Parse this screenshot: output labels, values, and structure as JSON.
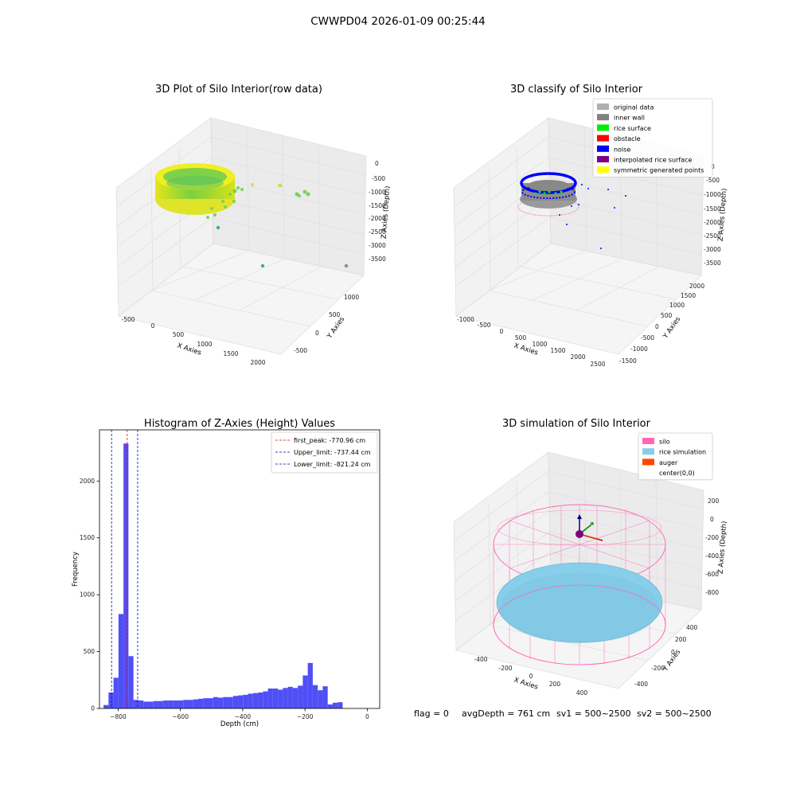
{
  "suptitle": "CWWPD04 2026-01-09 00:25:44",
  "status": {
    "flag": "flag = 0",
    "avg_depth": "avgDepth = 761 cm",
    "sv1": "sv1 = 500~2500",
    "sv2": "sv2 = 500~2500"
  },
  "colors": {
    "hist_bar": "#4f4ff7",
    "silo": "#ff69b4",
    "rice": "#87ceeb",
    "auger": "#ff4500",
    "original": "#b0b0b0",
    "inner_wall": "#808080",
    "rice_surface": "#00ee00",
    "obstacle": "#ff0000",
    "noise": "#0000ff",
    "interpolated": "#800080",
    "symmetric": "#ffff00"
  },
  "chart_data": [
    {
      "type": "scatter",
      "panel": "raw",
      "title": "3D Plot of Silo Interior(row data)",
      "xlabel": "X Axies",
      "ylabel": "Y Axies",
      "zlabel": "Z Axies (Depth)",
      "x_ticks": [
        "-500",
        "0",
        "500",
        "1000",
        "1500",
        "2000"
      ],
      "y_ticks": [
        "-500",
        "0",
        "500",
        "1000"
      ],
      "z_ticks": [
        "0",
        "-500",
        "-1000",
        "-1500",
        "-2000",
        "-2500",
        "-3000",
        "-3500"
      ],
      "grid": true
    },
    {
      "type": "scatter",
      "panel": "classify",
      "title": "3D classify of Silo Interior",
      "xlabel": "X Axies",
      "ylabel": "Y Axies",
      "zlabel": "Z Axies (Depth)",
      "x_ticks": [
        "-1000",
        "-500",
        "0",
        "500",
        "1000",
        "1500",
        "2000",
        "2500"
      ],
      "y_ticks": [
        "-1500",
        "-1000",
        "-500",
        "0",
        "500",
        "1000",
        "1500",
        "2000"
      ],
      "z_ticks": [
        "0",
        "-500",
        "-1000",
        "-1500",
        "-2000",
        "-2500",
        "-3000",
        "-3500"
      ],
      "legend_position": "top-right",
      "legend": [
        {
          "label": "original data",
          "color": "#b0b0b0"
        },
        {
          "label": "inner wall",
          "color": "#808080"
        },
        {
          "label": "rice surface",
          "color": "#00ee00"
        },
        {
          "label": "obstacle",
          "color": "#ff0000"
        },
        {
          "label": "noise",
          "color": "#0000ff"
        },
        {
          "label": "interpolated rice surface",
          "color": "#800080"
        },
        {
          "label": "symmetric generated points",
          "color": "#ffff00"
        }
      ],
      "grid": true
    },
    {
      "type": "bar",
      "panel": "histogram",
      "title": "Histogram of Z-Axies (Height) Values",
      "xlabel": "Depth (cm)",
      "ylabel": "Frequency",
      "xlim": [
        -860,
        40
      ],
      "ylim": [
        0,
        2450
      ],
      "x_ticks": [
        -800,
        -600,
        -400,
        -200,
        0
      ],
      "y_ticks": [
        0,
        500,
        1000,
        1500,
        2000
      ],
      "bin_start": -847,
      "bin_width": 16,
      "values": [
        30,
        140,
        270,
        830,
        2330,
        460,
        75,
        70,
        60,
        60,
        65,
        65,
        70,
        70,
        70,
        70,
        75,
        75,
        80,
        85,
        90,
        90,
        100,
        95,
        100,
        100,
        110,
        115,
        120,
        130,
        135,
        140,
        150,
        175,
        175,
        165,
        180,
        190,
        180,
        200,
        290,
        400,
        205,
        160,
        195,
        35,
        50,
        55
      ],
      "vlines": [
        {
          "label": "first_peak: -770.96 cm",
          "x": -770.96,
          "color": "#ff0000"
        },
        {
          "label": "Upper_limit: -737.44 cm",
          "x": -737.44,
          "color": "#0000cc"
        },
        {
          "label": "Lower_limit: -821.24 cm",
          "x": -821.24,
          "color": "#0000cc"
        }
      ],
      "legend_position": "top-right",
      "grid": false
    },
    {
      "type": "scatter",
      "panel": "simulation",
      "title": "3D simulation of Silo Interior",
      "xlabel": "X Axies",
      "ylabel": "Y Axies",
      "zlabel": "Z Axies (Depth)",
      "x_ticks": [
        "-400",
        "-200",
        "0",
        "200",
        "400"
      ],
      "y_ticks": [
        "-400",
        "-200",
        "0",
        "200",
        "400"
      ],
      "z_ticks": [
        "200",
        "0",
        "-200",
        "-400",
        "-600",
        "-800"
      ],
      "legend_position": "top-right",
      "legend": [
        {
          "label": "silo",
          "color": "#ff69b4"
        },
        {
          "label": "rice simulation",
          "color": "#87ceeb"
        },
        {
          "label": "auger",
          "color": "#ff4500"
        },
        {
          "label": "center(0,0)",
          "color": ""
        }
      ],
      "grid": true
    }
  ]
}
